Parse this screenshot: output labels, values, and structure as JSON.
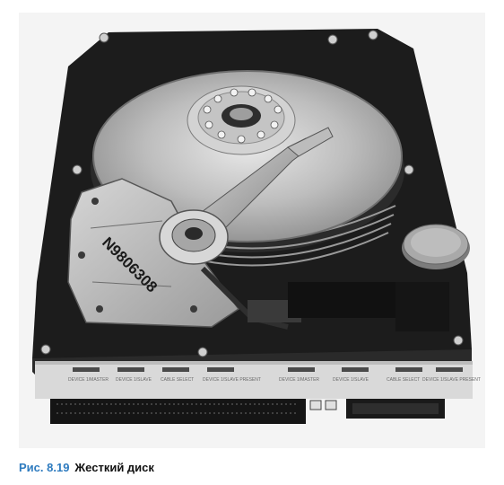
{
  "figure": {
    "label": "Рис. 8.19",
    "title": "Жесткий диск"
  },
  "photo": {
    "subject": "hard-disk-drive",
    "drive_label_text": "N9806308",
    "jumper_labels": [
      "DEVICE 1/MASTER",
      "DEVICE 1/SLAVE",
      "CABLE SELECT",
      "DEVICE 1/SLAVE PRESENT",
      "DEVICE 1/MASTER",
      "DEVICE 1/SLAVE",
      "CABLE SELECT",
      "DEVICE 1/SLAVE PRESENT"
    ],
    "colors": {
      "caption_label": "#2e7bbf",
      "caption_title": "#111111",
      "platter": "#b8b8b8",
      "chassis": "#1c1c1c"
    }
  }
}
